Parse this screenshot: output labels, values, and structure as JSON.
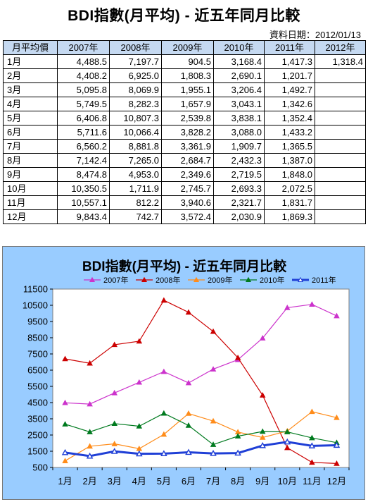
{
  "document": {
    "title": "BDI指數(月平均) - 近五年同月比較",
    "date_label": "資料日期：2012/01/13"
  },
  "table": {
    "header": [
      "月平均價",
      "2007年",
      "2008年",
      "2009年",
      "2010年",
      "2011年",
      "2012年"
    ],
    "rows": [
      [
        "1月",
        "4,488.5",
        "7,197.7",
        "904.5",
        "3,168.4",
        "1,417.3",
        "1,318.4"
      ],
      [
        "2月",
        "4,408.2",
        "6,925.0",
        "1,808.3",
        "2,690.1",
        "1,201.7",
        ""
      ],
      [
        "3月",
        "5,095.8",
        "8,069.9",
        "1,955.1",
        "3,206.4",
        "1,492.7",
        ""
      ],
      [
        "4月",
        "5,749.5",
        "8,282.3",
        "1,657.9",
        "3,043.1",
        "1,342.6",
        ""
      ],
      [
        "5月",
        "6,406.8",
        "10,807.3",
        "2,539.8",
        "3,838.1",
        "1,352.4",
        ""
      ],
      [
        "6月",
        "5,711.6",
        "10,066.4",
        "3,828.2",
        "3,088.0",
        "1,433.2",
        ""
      ],
      [
        "7月",
        "6,560.2",
        "8,881.8",
        "3,361.9",
        "1,909.7",
        "1,365.5",
        ""
      ],
      [
        "8月",
        "7,142.4",
        "7,265.0",
        "2,684.7",
        "2,432.3",
        "1,387.0",
        ""
      ],
      [
        "9月",
        "8,474.8",
        "4,953.0",
        "2,349.6",
        "2,719.5",
        "1,848.0",
        ""
      ],
      [
        "10月",
        "10,350.5",
        "1,711.9",
        "2,745.7",
        "2,693.3",
        "2,072.5",
        ""
      ],
      [
        "11月",
        "10,557.1",
        "812.2",
        "3,940.6",
        "2,321.7",
        "1,831.7",
        ""
      ],
      [
        "12月",
        "9,843.4",
        "742.7",
        "3,572.4",
        "2,030.9",
        "1,869.3",
        ""
      ]
    ]
  },
  "chart_data": {
    "type": "line",
    "title": "BDI指數(月平均) - 近五年同月比較",
    "categories": [
      "1月",
      "2月",
      "3月",
      "4月",
      "5月",
      "6月",
      "7月",
      "8月",
      "9月",
      "10月",
      "11月",
      "12月"
    ],
    "ylim": [
      500,
      11500
    ],
    "yticks": [
      500,
      1500,
      2500,
      3500,
      4500,
      5500,
      6500,
      7500,
      8500,
      9500,
      10500,
      11500
    ],
    "grid": false,
    "legend": "top",
    "series": [
      {
        "name": "2007年",
        "color": "#cc33cc",
        "marker": "triangle-filled",
        "values": [
          4488.5,
          4408.2,
          5095.8,
          5749.5,
          6406.8,
          5711.6,
          6560.2,
          7142.4,
          8474.8,
          10350.5,
          10557.1,
          9843.4
        ]
      },
      {
        "name": "2008年",
        "color": "#cc0000",
        "marker": "triangle-filled",
        "values": [
          7197.7,
          6925.0,
          8069.9,
          8282.3,
          10807.3,
          10066.4,
          8881.8,
          7265.0,
          4953.0,
          1711.9,
          812.2,
          742.7
        ]
      },
      {
        "name": "2009年",
        "color": "#ff8c1a",
        "marker": "triangle-filled",
        "values": [
          904.5,
          1808.3,
          1955.1,
          1657.9,
          2539.8,
          3828.2,
          3361.9,
          2684.7,
          2349.6,
          2745.7,
          3940.6,
          3572.4
        ]
      },
      {
        "name": "2010年",
        "color": "#007a1f",
        "marker": "triangle-filled",
        "values": [
          3168.4,
          2690.1,
          3206.4,
          3043.1,
          3838.1,
          3088.0,
          1909.7,
          2432.3,
          2719.5,
          2693.3,
          2321.7,
          2030.9
        ]
      },
      {
        "name": "2011年",
        "color": "#1f3fd6",
        "marker": "triangle-open",
        "values": [
          1417.3,
          1201.7,
          1492.7,
          1342.6,
          1352.4,
          1433.2,
          1365.5,
          1387.0,
          1848.0,
          2072.5,
          1831.7,
          1869.3
        ]
      }
    ]
  }
}
